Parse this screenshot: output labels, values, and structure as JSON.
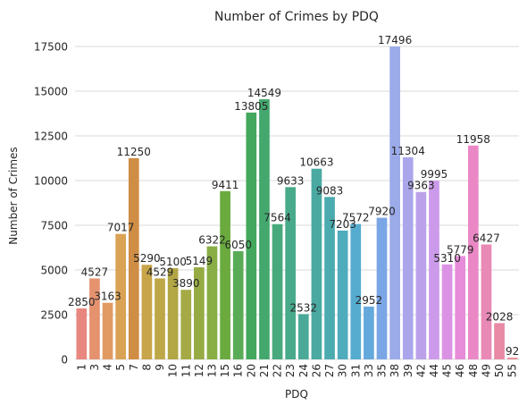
{
  "chart_data": {
    "type": "bar",
    "title": "Number of Crimes by PDQ",
    "xlabel": "PDQ",
    "ylabel": "Number of Crimes",
    "ylim": [
      0,
      18500
    ],
    "y_ticks": [
      0,
      2500,
      5000,
      7500,
      10000,
      12500,
      15000,
      17500
    ],
    "grid": true,
    "legend": "none",
    "categories": [
      "1",
      "3",
      "4",
      "5",
      "7",
      "8",
      "9",
      "10",
      "11",
      "12",
      "13",
      "15",
      "16",
      "20",
      "21",
      "22",
      "23",
      "24",
      "26",
      "27",
      "30",
      "31",
      "33",
      "35",
      "38",
      "39",
      "42",
      "44",
      "45",
      "46",
      "48",
      "49",
      "50",
      "55"
    ],
    "values": [
      2850,
      4527,
      3163,
      7017,
      11250,
      5290,
      4529,
      5100,
      3890,
      5149,
      6322,
      9411,
      6050,
      13805,
      14549,
      7564,
      9633,
      2532,
      10663,
      9083,
      7203,
      7572,
      2952,
      7920,
      17496,
      11304,
      9363,
      9995,
      5310,
      5779,
      11958,
      6427,
      2028,
      92
    ],
    "colors": [
      "#e8877f",
      "#e5926f",
      "#e09a62",
      "#d9a254",
      "#cf8d45",
      "#c8a44a",
      "#bea747",
      "#b2a645",
      "#a5aa45",
      "#97ab44",
      "#88ae45",
      "#6aaa3e",
      "#5aab56",
      "#43a85d",
      "#44a86e",
      "#47a97c",
      "#48aa8a",
      "#4aaa97",
      "#4aaaa2",
      "#4babaf",
      "#4facbd",
      "#55accf",
      "#64a9db",
      "#7aa6e5",
      "#9baae8",
      "#aba6eb",
      "#bba1ea",
      "#cc9aea",
      "#dc92e4",
      "#e68cd9",
      "#ea88c6",
      "#e989b6",
      "#e88aa5",
      "#e88894"
    ],
    "bar_label_values": [
      "2850",
      "4527",
      "3163",
      "7017",
      "11250",
      "5290",
      "4529",
      "5100",
      "3890",
      "5149",
      "6322",
      "9411",
      "6050",
      "13805",
      "14549",
      "7564",
      "9633",
      "2532",
      "10663",
      "9083",
      "7203",
      "7572",
      "2952",
      "7920",
      "17496",
      "11304",
      "9363",
      "9995",
      "5310",
      "5779",
      "11958",
      "6427",
      "2028",
      "92"
    ]
  }
}
